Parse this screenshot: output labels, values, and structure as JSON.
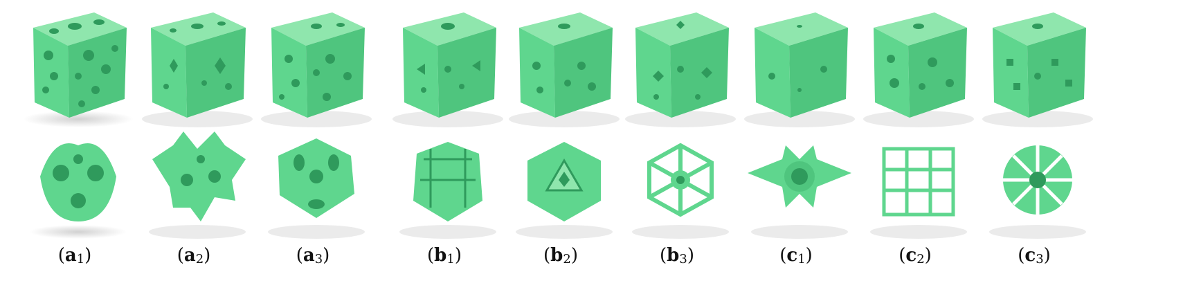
{
  "colors": {
    "material": "#5fd68e",
    "material_dark": "#2f9a5c",
    "material_light": "#8fe6ad",
    "background": "#ffffff"
  },
  "panels": [
    {
      "letter": "a",
      "index": "1"
    },
    {
      "letter": "a",
      "index": "2"
    },
    {
      "letter": "a",
      "index": "3"
    },
    {
      "letter": "b",
      "index": "1"
    },
    {
      "letter": "b",
      "index": "2"
    },
    {
      "letter": "b",
      "index": "3"
    },
    {
      "letter": "c",
      "index": "1"
    },
    {
      "letter": "c",
      "index": "2"
    },
    {
      "letter": "c",
      "index": "3"
    }
  ]
}
